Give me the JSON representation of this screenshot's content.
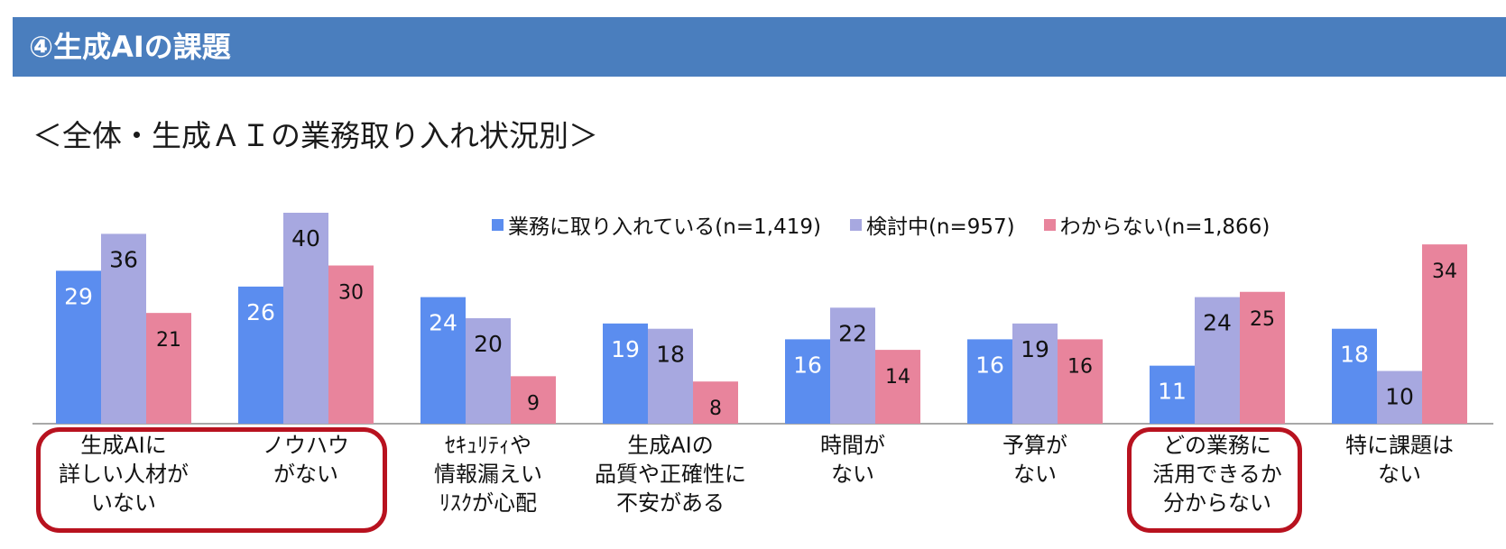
{
  "header": {
    "title": "④生成AIの課題"
  },
  "subtitle": "＜全体・生成ＡＩの業務取り入れ状況別＞",
  "colors": {
    "header_bg": "#4a7ebe",
    "highlight": "#b8121f"
  },
  "chart_data": {
    "type": "bar",
    "categories": [
      "生成AIに\n詳しい人材が\nいない",
      "ノウハウ\nがない",
      "ｾｷｭﾘﾃｨや\n情報漏えい\nﾘｽｸが心配",
      "生成AIの\n品質や正確性に\n不安がある",
      "時間が\nない",
      "予算が\nない",
      "どの業務に\n活用できるか\n分からない",
      "特に課題は\nない"
    ],
    "series": [
      {
        "name": "業務に取り入れている(n=1,419)",
        "color": "#5b8def",
        "values": [
          29,
          26,
          24,
          19,
          16,
          16,
          11,
          18
        ]
      },
      {
        "name": "検討中(n=957)",
        "color": "#a7a8e0",
        "values": [
          36,
          40,
          20,
          18,
          22,
          19,
          24,
          10
        ]
      },
      {
        "name": "わからない(n=1,866)",
        "color": "#e8849c",
        "values": [
          21,
          30,
          9,
          8,
          14,
          16,
          25,
          34
        ]
      }
    ],
    "ylim": [
      0,
      40
    ],
    "grid": false,
    "legend": "top",
    "highlighted_categories": [
      [
        0,
        1
      ],
      [
        6,
        6
      ]
    ]
  }
}
